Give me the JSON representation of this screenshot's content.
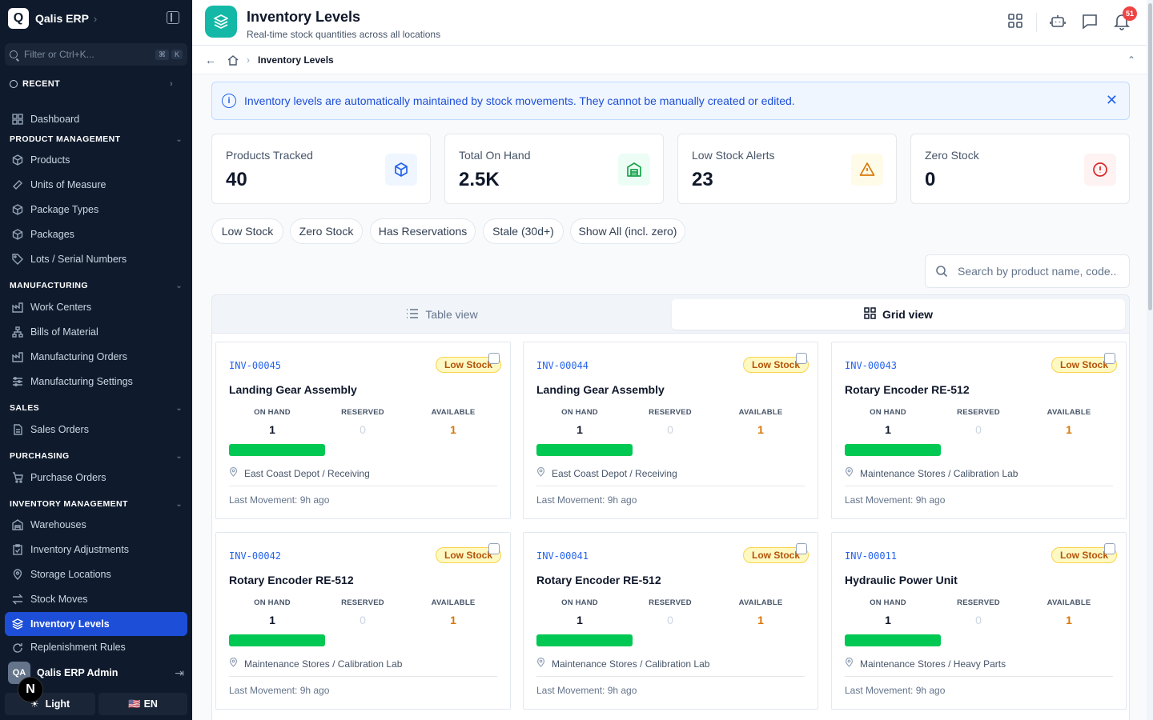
{
  "app": {
    "logo_letter": "Q",
    "name": "Qalis ERP"
  },
  "sidebar": {
    "filter_placeholder": "Filter or Ctrl+K...",
    "kbd1": "⌘",
    "kbd2": "K",
    "recent": "RECENT",
    "dashboard": "Dashboard",
    "sections": {
      "product": "PRODUCT MANAGEMENT",
      "manufacturing": "MANUFACTURING",
      "sales": "SALES",
      "purchasing": "PURCHASING",
      "inventory": "INVENTORY MANAGEMENT"
    },
    "items": {
      "products": "Products",
      "uom": "Units of Measure",
      "package_types": "Package Types",
      "packages": "Packages",
      "lots": "Lots / Serial Numbers",
      "work_centers": "Work Centers",
      "bom": "Bills of Material",
      "mfg_orders": "Manufacturing Orders",
      "mfg_settings": "Manufacturing Settings",
      "sales_orders": "Sales Orders",
      "purchase_orders": "Purchase Orders",
      "warehouses": "Warehouses",
      "adjustments": "Inventory Adjustments",
      "storage": "Storage Locations",
      "stock_moves": "Stock Moves",
      "levels": "Inventory Levels",
      "replenishment": "Replenishment Rules"
    },
    "user": {
      "initials": "QA",
      "name": "Qalis ERP Admin"
    },
    "n_badge": "N",
    "theme_label": "Light",
    "lang_flag": "🇺🇸",
    "lang_label": "EN"
  },
  "header": {
    "title": "Inventory Levels",
    "subtitle": "Real-time stock quantities across all locations",
    "notif_count": "51"
  },
  "breadcrumb": {
    "current": "Inventory Levels"
  },
  "alert": {
    "text": "Inventory levels are automatically maintained by stock movements. They cannot be manually created or edited."
  },
  "stats": [
    {
      "label": "Products Tracked",
      "value": "40",
      "icon": "box-icon",
      "color": "#2563eb"
    },
    {
      "label": "Total On Hand",
      "value": "2.5K",
      "icon": "warehouse-icon",
      "color": "#16a34a"
    },
    {
      "label": "Low Stock Alerts",
      "value": "23",
      "icon": "warning-icon",
      "color": "#d97706"
    },
    {
      "label": "Zero Stock",
      "value": "0",
      "icon": "alert-circle-icon",
      "color": "#dc2626"
    }
  ],
  "filters": [
    "Low Stock",
    "Zero Stock",
    "Has Reservations",
    "Stale (30d+)",
    "Show All (incl. zero)"
  ],
  "search": {
    "placeholder": "Search by product name, code..."
  },
  "views": {
    "table": "Table view",
    "grid": "Grid view"
  },
  "metric_labels": {
    "on_hand": "ON HAND",
    "reserved": "RESERVED",
    "available": "AVAILABLE"
  },
  "cards": [
    {
      "code": "INV-00045",
      "badge": "Low Stock",
      "name": "Landing Gear Assembly",
      "on_hand": "1",
      "reserved": "0",
      "available": "1",
      "location": "East Coast Depot / Receiving",
      "last": "Last Movement: 9h ago"
    },
    {
      "code": "INV-00044",
      "badge": "Low Stock",
      "name": "Landing Gear Assembly",
      "on_hand": "1",
      "reserved": "0",
      "available": "1",
      "location": "East Coast Depot / Receiving",
      "last": "Last Movement: 9h ago"
    },
    {
      "code": "INV-00043",
      "badge": "Low Stock",
      "name": "Rotary Encoder RE-512",
      "on_hand": "1",
      "reserved": "0",
      "available": "1",
      "location": "Maintenance Stores / Calibration Lab",
      "last": "Last Movement: 9h ago"
    },
    {
      "code": "INV-00042",
      "badge": "Low Stock",
      "name": "Rotary Encoder RE-512",
      "on_hand": "1",
      "reserved": "0",
      "available": "1",
      "location": "Maintenance Stores / Calibration Lab",
      "last": "Last Movement: 9h ago"
    },
    {
      "code": "INV-00041",
      "badge": "Low Stock",
      "name": "Rotary Encoder RE-512",
      "on_hand": "1",
      "reserved": "0",
      "available": "1",
      "location": "Maintenance Stores / Calibration Lab",
      "last": "Last Movement: 9h ago"
    },
    {
      "code": "INV-00011",
      "badge": "Low Stock",
      "name": "Hydraulic Power Unit",
      "on_hand": "1",
      "reserved": "0",
      "available": "1",
      "location": "Maintenance Stores / Heavy Parts",
      "last": "Last Movement: 9h ago"
    }
  ]
}
